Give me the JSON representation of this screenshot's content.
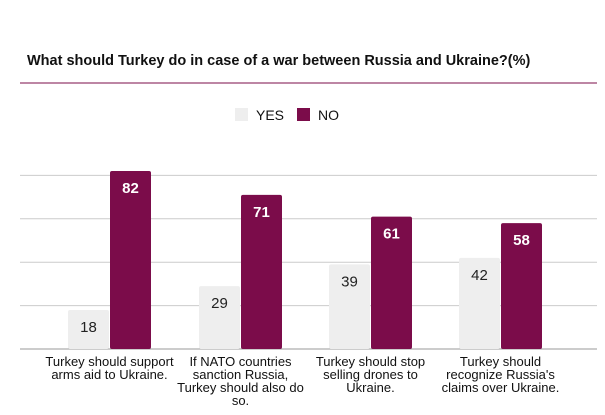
{
  "chart_data": {
    "type": "bar",
    "title": "What should Turkey do in case of a war between Russia and Ukraine?(%)",
    "categories": [
      [
        "Turkey should support",
        "arms aid to Ukraine."
      ],
      [
        "If NATO countries",
        "sanction Russia,",
        "Turkey should also do",
        "so."
      ],
      [
        "Turkey should stop",
        "selling drones to",
        "Ukraine."
      ],
      [
        "Turkey should",
        "recognize Russia's",
        "claims over Ukraine."
      ]
    ],
    "series": [
      {
        "name": "YES",
        "values": [
          18,
          29,
          39,
          42
        ],
        "color": "#eeeeee",
        "label_color": "#222222"
      },
      {
        "name": "NO",
        "values": [
          82,
          71,
          61,
          58
        ],
        "color": "#7b0c4a",
        "label_color": "#ffffff"
      }
    ],
    "ylim": [
      0,
      100
    ],
    "grid": true,
    "legend_position": "top-center",
    "colors": {
      "accent_line": "#7b0c4a",
      "grid": "#cccccc"
    }
  }
}
